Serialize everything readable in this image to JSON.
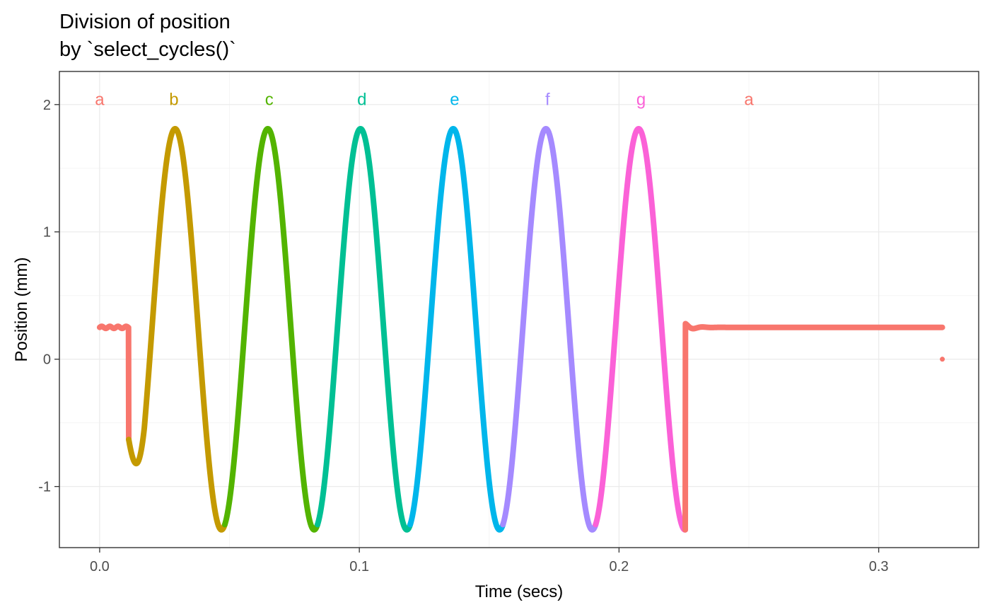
{
  "chart_data": {
    "type": "line",
    "title": [
      "Division of position",
      "by `select_cycles()`"
    ],
    "xlabel": "Time (secs)",
    "ylabel": "Position (mm)",
    "xlim": [
      -0.0155,
      0.3385
    ],
    "ylim": [
      -1.48,
      2.26
    ],
    "x_ticks": [
      0.0,
      0.1,
      0.2,
      0.3
    ],
    "x_tick_labels": [
      "0.0",
      "0.1",
      "0.2",
      "0.3"
    ],
    "y_ticks": [
      -1,
      0,
      1,
      2
    ],
    "y_tick_labels": [
      "-1",
      "0",
      "1",
      "2"
    ],
    "grid": true,
    "legend": "none",
    "signal": {
      "baseline": 0.25,
      "amplitude": 1.575,
      "center": 0.235,
      "period": 0.0357,
      "phase_start": 0.0112,
      "osc_end": 0.2255,
      "end_time": 0.3245,
      "outlier": [
        0.3245,
        0
      ]
    },
    "segments": [
      {
        "label": "a",
        "color": "#F8766D",
        "x_start": 0.0,
        "x_end": 0.0112,
        "label_x": 0.0
      },
      {
        "label": "b",
        "color": "#C49A00",
        "x_start": 0.0112,
        "x_end": 0.0482,
        "label_x": 0.0286
      },
      {
        "label": "c",
        "color": "#53B400",
        "x_start": 0.0482,
        "x_end": 0.0839,
        "label_x": 0.0653
      },
      {
        "label": "d",
        "color": "#00C094",
        "x_start": 0.0839,
        "x_end": 0.1196,
        "label_x": 0.101
      },
      {
        "label": "e",
        "color": "#00B6EB",
        "x_start": 0.1196,
        "x_end": 0.1553,
        "label_x": 0.1367
      },
      {
        "label": "f",
        "color": "#A58AFF",
        "x_start": 0.1553,
        "x_end": 0.191,
        "label_x": 0.1725
      },
      {
        "label": "g",
        "color": "#FB61D7",
        "x_start": 0.191,
        "x_end": 0.2255,
        "label_x": 0.2085
      },
      {
        "label": "a",
        "color": "#F8766D",
        "x_start": 0.2255,
        "x_end": 0.3245,
        "label_x": 0.25
      }
    ],
    "label_y": 2.04
  },
  "colors": {
    "panel_border": "#333333",
    "grid_major": "#ebebeb",
    "grid_minor": "#f5f5f5",
    "tick": "#333333"
  }
}
